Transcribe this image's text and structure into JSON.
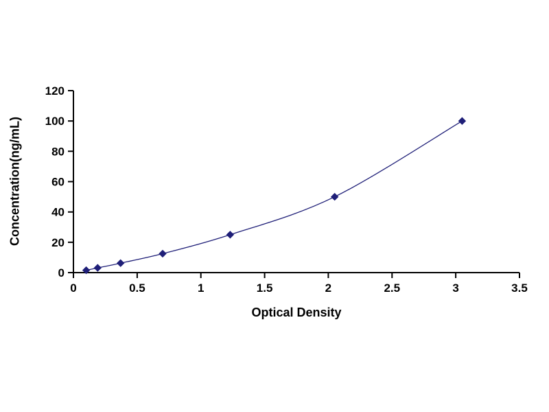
{
  "chart_data": {
    "type": "scatter",
    "title": "",
    "xlabel": "Optical Density",
    "ylabel": "Concentration(ng/mL)",
    "x": [
      0.1,
      0.19,
      0.37,
      0.7,
      1.23,
      2.05,
      3.05
    ],
    "y": [
      1.56,
      3.12,
      6.25,
      12.5,
      25,
      50,
      100
    ],
    "xlim": [
      0,
      3.5
    ],
    "ylim": [
      0,
      120
    ],
    "x_ticks": [
      0,
      0.5,
      1,
      1.5,
      2,
      2.5,
      3,
      3.5
    ],
    "y_ticks": [
      0,
      20,
      40,
      60,
      80,
      100,
      120
    ],
    "x_tick_labels": [
      "0",
      "0.5",
      "1",
      "1.5",
      "2",
      "2.5",
      "3",
      "3.5"
    ],
    "y_tick_labels": [
      "0",
      "20",
      "40",
      "60",
      "80",
      "100",
      "120"
    ],
    "grid": false,
    "legend": "none",
    "marker": "diamond",
    "series_color": "#1f1f78",
    "axis_color": "#000000",
    "background_color": "#ffffff"
  }
}
